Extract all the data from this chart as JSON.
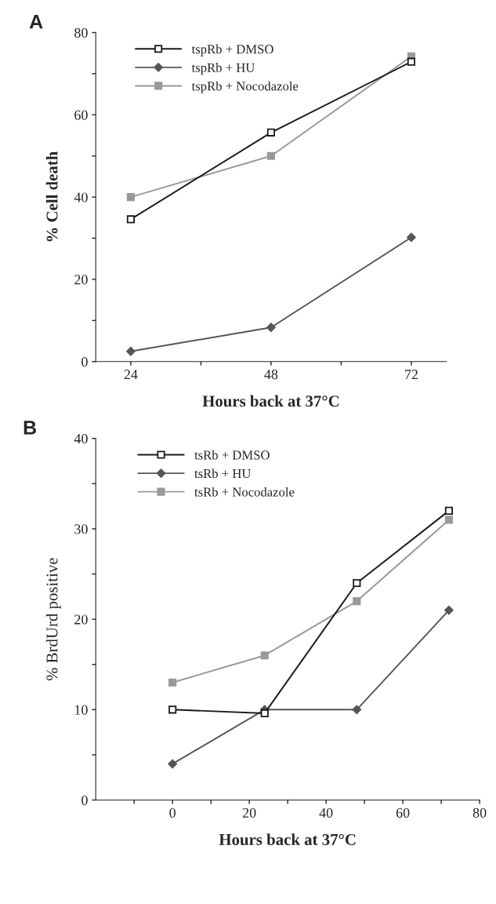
{
  "chart_data": [
    {
      "type": "line",
      "title": "A",
      "xlabel": "Hours back at 37°C",
      "ylabel": "% Cell death",
      "x": [
        24,
        48,
        72
      ],
      "series": [
        {
          "name": "tspRb + DMSO",
          "color": "#1a1a1a",
          "marker": "square_open",
          "values": [
            34.6,
            55.7,
            72.9
          ]
        },
        {
          "name": "tspRb + HU",
          "color": "#555555",
          "marker": "diamond",
          "values": [
            2.5,
            8.3,
            30.2
          ]
        },
        {
          "name": "tspRb + Nocodazole",
          "color": "#999999",
          "marker": "square",
          "values": [
            40,
            50,
            74.2
          ]
        }
      ],
      "xlim": [
        18,
        78
      ],
      "xticks": [
        24,
        {
          "value": 36,
          "label": null
        },
        48,
        {
          "value": 60,
          "label": null
        },
        72
      ],
      "ylim": [
        0,
        80
      ],
      "yticks": [
        0,
        {
          "value": 10,
          "label": null
        },
        20,
        {
          "value": 30,
          "label": null
        },
        40,
        {
          "value": 50,
          "label": null
        },
        60,
        {
          "value": 70,
          "label": null
        },
        80
      ],
      "grid": false,
      "legend": "top left"
    },
    {
      "type": "line",
      "title": "B",
      "xlabel": "Hours back at 37°C",
      "ylabel": "% BrdUrd positive",
      "x": [
        0,
        24,
        48,
        72
      ],
      "series": [
        {
          "name": "tsRb + DMSO",
          "color": "#1a1a1a",
          "marker": "square_open",
          "values": [
            10,
            9.6,
            24,
            32
          ]
        },
        {
          "name": "tsRb + HU",
          "color": "#555555",
          "marker": "diamond",
          "values": [
            4,
            10,
            10,
            21
          ]
        },
        {
          "name": "tsRb + Nocodazole",
          "color": "#999999",
          "marker": "square",
          "values": [
            13,
            16,
            22,
            31
          ]
        }
      ],
      "xlim": [
        -20,
        80
      ],
      "xticks": [
        {
          "value": -10,
          "label": null
        },
        0,
        {
          "value": 10,
          "label": null
        },
        20,
        {
          "value": 30,
          "label": null
        },
        40,
        {
          "value": 50,
          "label": null
        },
        60,
        {
          "value": 70,
          "label": null
        },
        80
      ],
      "ylim": [
        0,
        40
      ],
      "yticks": [
        0,
        {
          "value": 5,
          "label": null
        },
        10,
        {
          "value": 15,
          "label": null
        },
        20,
        {
          "value": 25,
          "label": null
        },
        30,
        {
          "value": 35,
          "label": null
        },
        40
      ],
      "grid": false,
      "legend": "top left"
    }
  ]
}
